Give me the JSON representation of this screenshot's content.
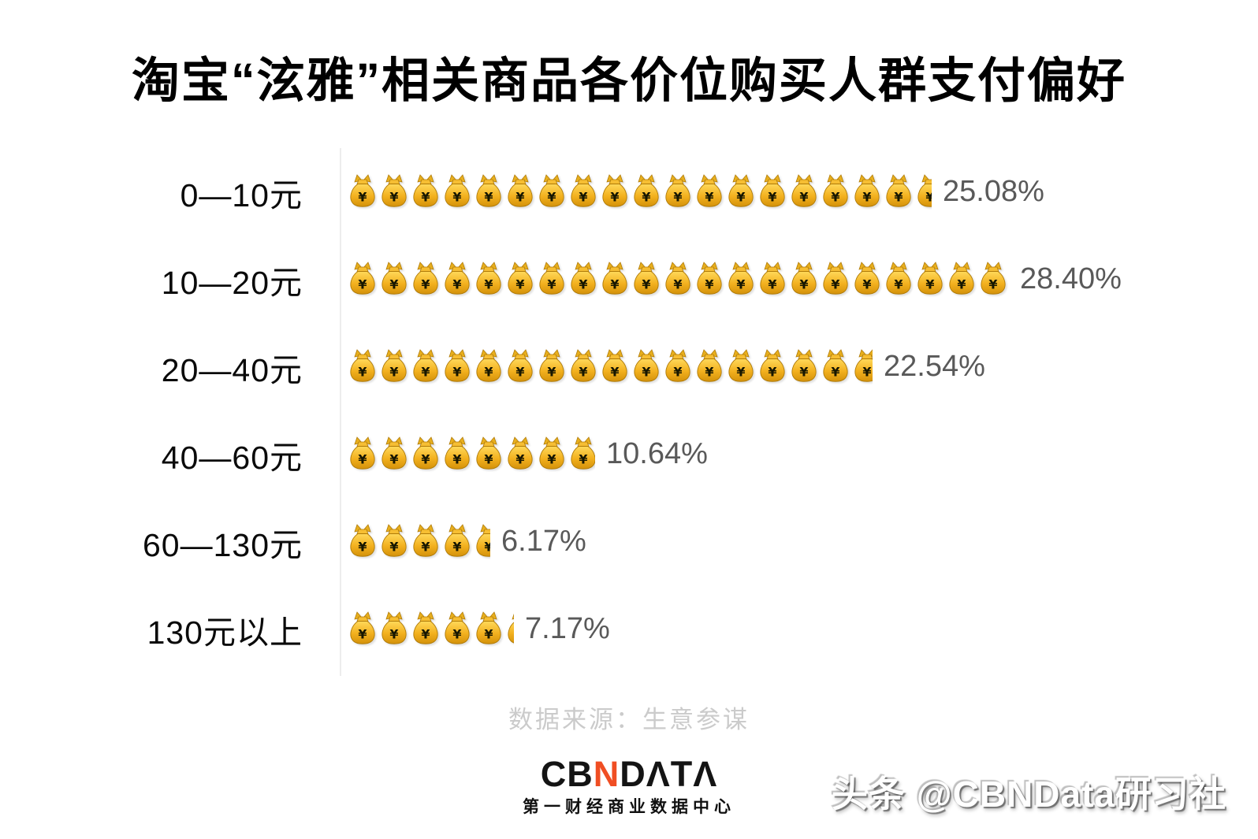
{
  "title": "淘宝“泫雅”相关商品各价位购买人群支付偏好",
  "chart_data": {
    "type": "bar",
    "style": "pictogram",
    "icon": "money-bag-emoji",
    "title": "淘宝“泫雅”相关商品各价位购买人群支付偏好",
    "categories": [
      "0—10元",
      "10—20元",
      "20—40元",
      "40—60元",
      "60—130元",
      "130元以上"
    ],
    "values": [
      25.08,
      28.4,
      22.54,
      10.64,
      6.17,
      7.17
    ],
    "value_labels": [
      "25.08%",
      "28.40%",
      "22.54%",
      "10.64%",
      "6.17%",
      "7.17%"
    ],
    "unit": "%",
    "xlim": [
      0,
      30
    ],
    "icons_per_percent": 0.73944,
    "grid": false,
    "legend": false,
    "orientation": "horizontal"
  },
  "footer": {
    "source_label": "数据来源：生意参谋"
  },
  "logo": {
    "head": "CB",
    "n": "N",
    "tail": "DΛTΛ",
    "subtitle": "第一财经商业数据中心",
    "accent_color": "#F04E23"
  },
  "watermark": {
    "text": "头条 @CBNData研习社"
  },
  "colors": {
    "bag_gold": "#F2B01E",
    "bag_outline": "#B07B08",
    "percent_text": "#595959",
    "source_text": "#cbcbcb",
    "axis_line": "#ededed"
  }
}
